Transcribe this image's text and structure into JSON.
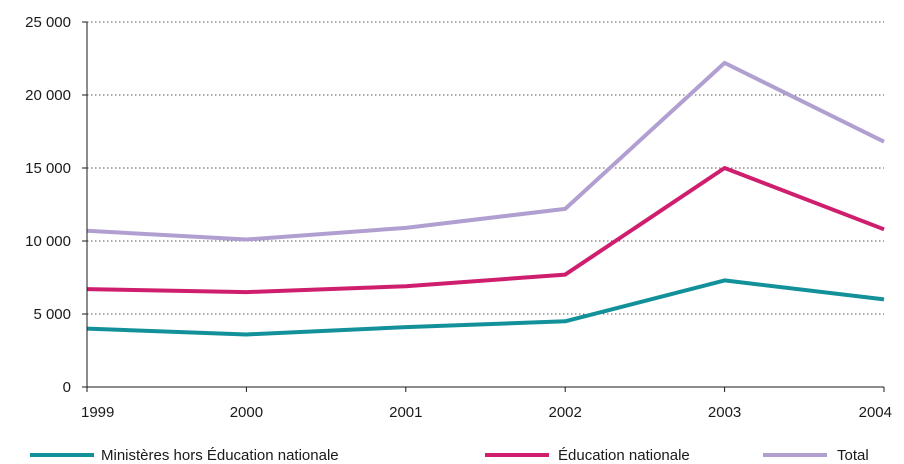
{
  "chart_data": {
    "type": "line",
    "title": "",
    "xlabel": "",
    "ylabel": "",
    "categories": [
      "1999",
      "2000",
      "2001",
      "2002",
      "2003",
      "2004"
    ],
    "ylim": [
      0,
      25000
    ],
    "yticks": [
      0,
      5000,
      10000,
      15000,
      20000,
      25000
    ],
    "ytick_labels": [
      "0",
      "5 000",
      "10 000",
      "15 000",
      "20 000",
      "25 000"
    ],
    "grid": true,
    "legend_position": "bottom",
    "series": [
      {
        "name": "Ministères hors Éducation nationale",
        "color": "#13919b",
        "values": [
          4000,
          3600,
          4100,
          4500,
          7300,
          6000
        ]
      },
      {
        "name": "Éducation nationale",
        "color": "#cf1e6e",
        "values": [
          6700,
          6500,
          6900,
          7700,
          15000,
          10800
        ]
      },
      {
        "name": "Total",
        "color": "#b09fd0",
        "values": [
          10700,
          10100,
          10900,
          12200,
          22200,
          16800
        ]
      }
    ]
  }
}
